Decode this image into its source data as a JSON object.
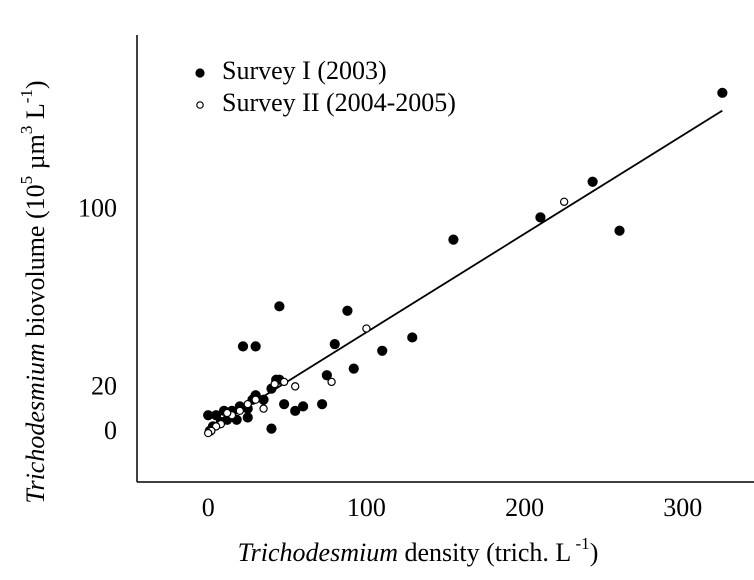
{
  "chart_data": {
    "type": "scatter",
    "xlabel": [
      {
        "text": "Trichodesmium",
        "style": "italic"
      },
      {
        "text": " density (trich. L"
      },
      {
        "text": " -1",
        "style": "sup"
      },
      {
        "text": ")"
      }
    ],
    "ylabel": [
      {
        "text": "Trichodesmium",
        "style": "italic"
      },
      {
        "text": " biovolume (10"
      },
      {
        "text": "5",
        "style": "sup"
      },
      {
        "text": " µm"
      },
      {
        "text": "3",
        "style": "sup"
      },
      {
        "text": " L"
      },
      {
        "text": "-1",
        "style": "sup"
      },
      {
        "text": ")"
      }
    ],
    "xlim": [
      -45,
      345
    ],
    "ylim": [
      -22,
      179
    ],
    "xticks": [
      0,
      100,
      200,
      300
    ],
    "yticks": [
      0,
      20,
      100
    ],
    "grid": false,
    "legend": "upper left",
    "series": [
      {
        "name": "Survey I (2003)",
        "color": "#000000",
        "marker": "filled",
        "x": [
          325,
          243,
          210,
          260,
          155,
          45,
          88,
          22,
          30,
          80,
          129,
          110,
          92,
          75,
          45,
          43,
          40,
          48,
          55,
          60,
          72,
          35,
          30,
          28,
          25,
          20,
          40,
          15,
          10,
          5,
          0,
          8,
          12,
          18,
          3,
          1,
          25
        ],
        "y": [
          153,
          113,
          97,
          91,
          87,
          57,
          55,
          39,
          39,
          40,
          43,
          37,
          29,
          26,
          24,
          24,
          20,
          13,
          10,
          12,
          13,
          15,
          17,
          15,
          11,
          12,
          2,
          10,
          10,
          8,
          8,
          5,
          6,
          6,
          3,
          1,
          7
        ]
      },
      {
        "name": "Survey II (2004-2005)",
        "color": "#000000",
        "marker": "open",
        "x": [
          225,
          100,
          78,
          55,
          48,
          42,
          35,
          25,
          15,
          12,
          8,
          5,
          2,
          0,
          20,
          30
        ],
        "y": [
          104,
          47,
          23,
          21,
          23,
          22,
          11,
          13,
          8,
          9,
          4,
          3,
          1,
          0,
          10,
          15
        ]
      }
    ],
    "fit": {
      "color": "#000000",
      "x": [
        0,
        325
      ],
      "y": [
        1,
        145
      ]
    }
  }
}
